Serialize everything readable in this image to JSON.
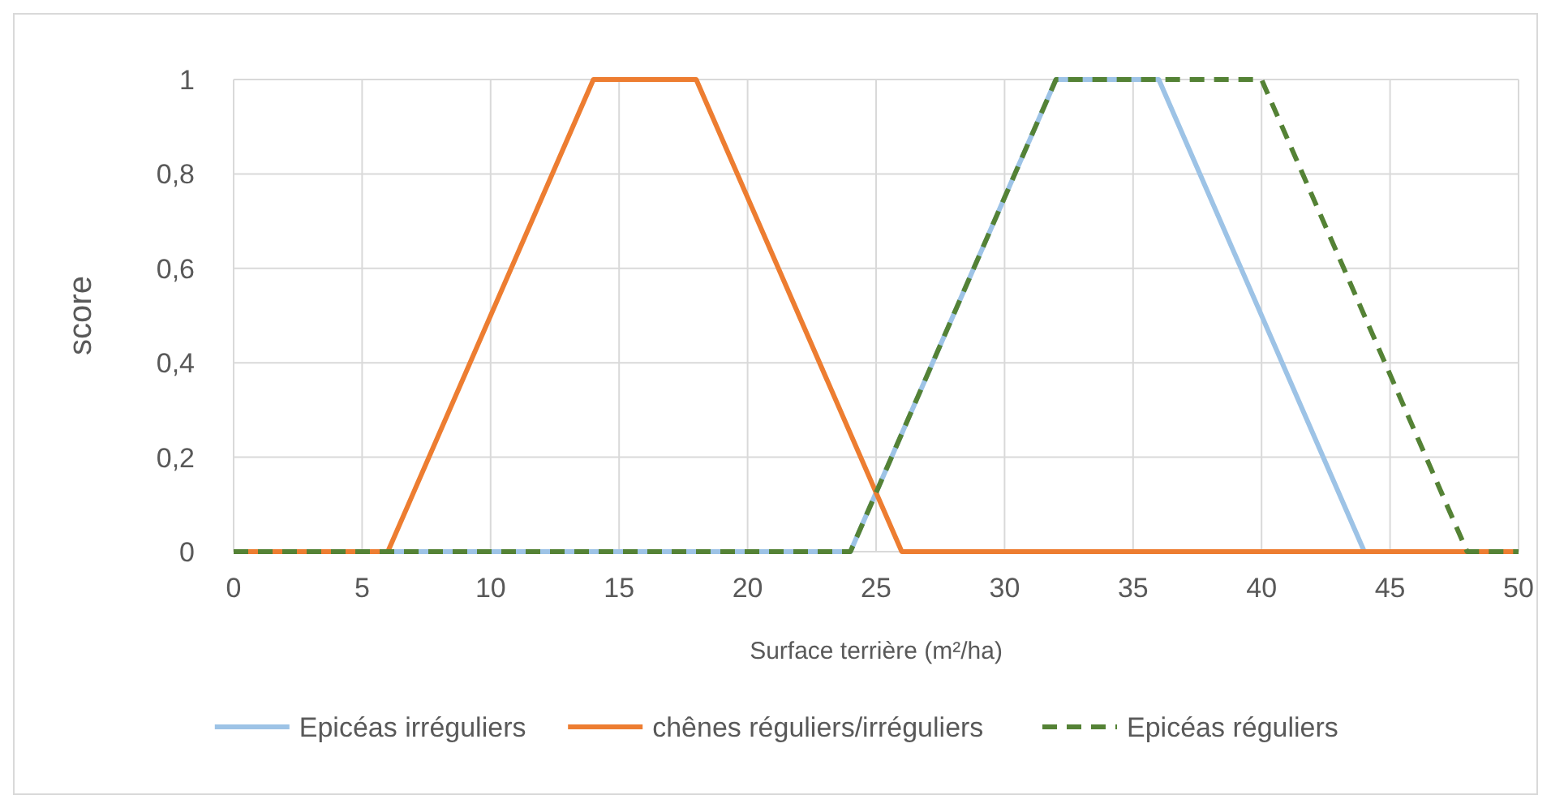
{
  "chart_data": {
    "type": "line",
    "xlabel": "Surface terrière (m²/ha)",
    "ylabel": "score",
    "xlim": [
      0,
      50
    ],
    "xticks": [
      0,
      5,
      10,
      15,
      20,
      25,
      30,
      35,
      40,
      45,
      50
    ],
    "ylim": [
      0,
      1
    ],
    "yticks": [
      0,
      {
        "value": 0.2,
        "label": "0,2"
      },
      {
        "value": 0.4,
        "label": "0,4"
      },
      {
        "value": 0.6,
        "label": "0,6"
      },
      {
        "value": 0.8,
        "label": "0,8"
      },
      1
    ],
    "grid": true,
    "legend": "bottom",
    "series": [
      {
        "name": "Epicéas irréguliers",
        "color": "#9dc3e6",
        "line_style": "solid",
        "x": [
          0,
          24,
          32,
          36,
          44,
          50
        ],
        "values": [
          0,
          0,
          1,
          1,
          0,
          0
        ]
      },
      {
        "name": "chênes réguliers/irréguliers",
        "color": "#ed7d31",
        "line_style": "solid",
        "x": [
          0,
          6,
          14,
          18,
          26,
          50
        ],
        "values": [
          0,
          0,
          1,
          1,
          0,
          0
        ]
      },
      {
        "name": "Epicéas réguliers",
        "color": "#548235",
        "line_style": "dashed",
        "x": [
          0,
          24,
          32,
          40,
          48,
          50
        ],
        "values": [
          0,
          0,
          1,
          1,
          0,
          0
        ]
      }
    ]
  }
}
